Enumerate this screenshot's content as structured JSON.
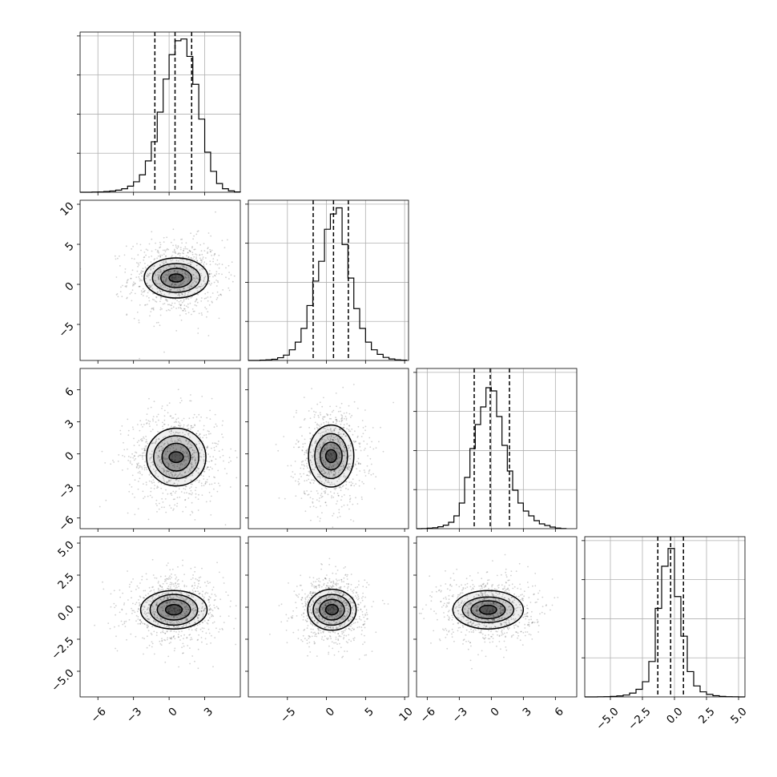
{
  "chart_data": {
    "type": "corner",
    "title": "",
    "parameters": [
      {
        "xlim": [
          -7.5,
          6
        ],
        "ticks": [
          -6,
          -3,
          0,
          3
        ],
        "tick_labels": [
          "−6",
          "−3",
          "0",
          "3"
        ],
        "quantiles": [
          -1.2,
          0.5,
          1.9
        ],
        "hist": {
          "edges": [
            -7.5,
            -7.0,
            -6.5,
            -6.0,
            -5.5,
            -5.0,
            -4.5,
            -4.0,
            -3.5,
            -3.0,
            -2.5,
            -2.0,
            -1.5,
            -1.0,
            -0.5,
            0.0,
            0.5,
            1.0,
            1.5,
            2.0,
            2.5,
            3.0,
            3.5,
            4.0,
            4.5,
            5.0,
            5.5,
            6.0
          ],
          "counts": [
            0,
            0,
            1,
            2,
            4,
            7,
            12,
            20,
            35,
            60,
            100,
            180,
            290,
            460,
            650,
            790,
            870,
            880,
            780,
            620,
            420,
            230,
            120,
            50,
            20,
            8,
            2
          ]
        },
        "hist_ymax": 920
      },
      {
        "xlim": [
          -10,
          10.5
        ],
        "ticks": [
          -5,
          0,
          5,
          10
        ],
        "tick_labels": [
          "−5",
          "0",
          "5",
          "10"
        ],
        "quantiles": [
          -1.7,
          0.9,
          2.8
        ],
        "hist": {
          "edges": [
            -10,
            -9.25,
            -8.5,
            -7.75,
            -7.0,
            -6.25,
            -5.5,
            -4.75,
            -4.0,
            -3.25,
            -2.5,
            -1.75,
            -1.0,
            -0.25,
            0.5,
            1.25,
            2.0,
            2.75,
            3.5,
            4.25,
            5.0,
            5.75,
            6.5,
            7.25,
            8.0,
            8.75,
            9.5,
            10.25
          ],
          "counts": [
            0,
            0,
            2,
            4,
            8,
            18,
            35,
            70,
            120,
            210,
            360,
            520,
            650,
            860,
            960,
            1000,
            760,
            540,
            340,
            210,
            120,
            70,
            40,
            20,
            10,
            4,
            2
          ]
        },
        "hist_ymax": 1050
      },
      {
        "xlim": [
          -7,
          8
        ],
        "ticks": [
          -6,
          -3,
          0,
          3,
          6
        ],
        "tick_labels": [
          "−6",
          "−3",
          "0",
          "3",
          "6"
        ],
        "quantiles": [
          -1.6,
          -0.1,
          1.7
        ],
        "hist": {
          "edges": [
            -7.0,
            -6.5,
            -6.0,
            -5.5,
            -5.0,
            -4.5,
            -4.0,
            -3.5,
            -3.0,
            -2.5,
            -2.0,
            -1.5,
            -1.0,
            -0.5,
            0.0,
            0.5,
            1.0,
            1.5,
            2.0,
            2.5,
            3.0,
            3.5,
            4.0,
            4.5,
            5.0,
            5.5,
            6.0,
            6.5,
            7.0
          ],
          "counts": [
            0,
            1,
            3,
            6,
            12,
            22,
            40,
            80,
            160,
            320,
            500,
            650,
            760,
            880,
            860,
            700,
            520,
            360,
            240,
            160,
            110,
            80,
            50,
            30,
            20,
            10,
            4,
            1
          ]
        },
        "hist_ymax": 1000
      },
      {
        "xlim": [
          -7,
          5.5
        ],
        "ticks": [
          -5,
          -2.5,
          0,
          2.5,
          5
        ],
        "tick_labels": [
          "−5.0",
          "−2.5",
          "0.0",
          "2.5",
          "5.0"
        ],
        "quantiles": [
          -1.3,
          -0.3,
          0.7
        ],
        "hist": {
          "edges": [
            -7.0,
            -6.5,
            -6.0,
            -5.5,
            -5.0,
            -4.5,
            -4.0,
            -3.5,
            -3.0,
            -2.5,
            -2.0,
            -1.5,
            -1.0,
            -0.5,
            0.0,
            0.5,
            1.0,
            1.5,
            2.0,
            2.5,
            3.0,
            3.5,
            4.0,
            4.5,
            5.0,
            5.5
          ],
          "counts": [
            0,
            0,
            1,
            3,
            6,
            12,
            22,
            45,
            90,
            180,
            420,
            1050,
            1550,
            1760,
            1190,
            720,
            300,
            130,
            60,
            30,
            14,
            6,
            3,
            1,
            0
          ]
        },
        "hist_ymax": 1900
      }
    ],
    "y_axis_ticks": [
      null,
      {
        "ylim": [
          -9.5,
          10.5
        ],
        "ticks": [
          -5,
          0,
          5,
          10
        ],
        "tick_labels": [
          "−5",
          "0",
          "5",
          "10"
        ]
      },
      {
        "ylim": [
          -7,
          8
        ],
        "ticks": [
          -6,
          -3,
          0,
          3,
          6
        ],
        "tick_labels": [
          "−6",
          "−3",
          "0",
          "3",
          "6"
        ]
      },
      {
        "ylim": [
          -7,
          5.5
        ],
        "ticks": [
          -5,
          -2.5,
          0,
          2.5,
          5
        ],
        "tick_labels": [
          "−5.0",
          "−2.5",
          "0.0",
          "2.5",
          "5.0"
        ]
      }
    ],
    "pairs": [
      {
        "row": 1,
        "col": 0,
        "center": [
          0.6,
          0.8
        ],
        "sd": [
          2.0,
          2.4
        ],
        "contour_sd": [
          [
            0.6,
            0.5
          ],
          [
            1.3,
            1.2
          ],
          [
            2.0,
            1.8
          ],
          [
            2.7,
            2.5
          ]
        ]
      },
      {
        "row": 2,
        "col": 0,
        "center": [
          0.6,
          -0.3
        ],
        "sd": [
          2.0,
          2.2
        ],
        "contour_sd": [
          [
            0.6,
            0.5
          ],
          [
            1.2,
            1.3
          ],
          [
            1.9,
            2.0
          ],
          [
            2.5,
            2.7
          ]
        ]
      },
      {
        "row": 2,
        "col": 1,
        "center": [
          0.6,
          -0.2
        ],
        "sd": [
          2.2,
          2.3
        ],
        "contour_sd": [
          [
            0.7,
            0.6
          ],
          [
            1.4,
            1.3
          ],
          [
            2.1,
            2.1
          ],
          [
            2.9,
            2.9
          ]
        ]
      },
      {
        "row": 3,
        "col": 0,
        "center": [
          0.4,
          -0.2
        ],
        "sd": [
          2.0,
          1.3
        ],
        "contour_sd": [
          [
            0.7,
            0.4
          ],
          [
            1.4,
            0.8
          ],
          [
            2.0,
            1.2
          ],
          [
            2.8,
            1.5
          ]
        ]
      },
      {
        "row": 3,
        "col": 1,
        "center": [
          0.7,
          -0.2
        ],
        "sd": [
          2.2,
          1.3
        ],
        "contour_sd": [
          [
            0.8,
            0.4
          ],
          [
            1.6,
            0.8
          ],
          [
            2.4,
            1.2
          ],
          [
            3.1,
            1.6
          ]
        ]
      },
      {
        "row": 3,
        "col": 2,
        "center": [
          -0.3,
          -0.2
        ],
        "sd": [
          2.2,
          1.3
        ],
        "contour_sd": [
          [
            0.8,
            0.35
          ],
          [
            1.6,
            0.7
          ],
          [
            2.4,
            1.0
          ],
          [
            3.3,
            1.5
          ]
        ]
      }
    ],
    "grid": true,
    "xlabel": "",
    "ylabel": ""
  }
}
